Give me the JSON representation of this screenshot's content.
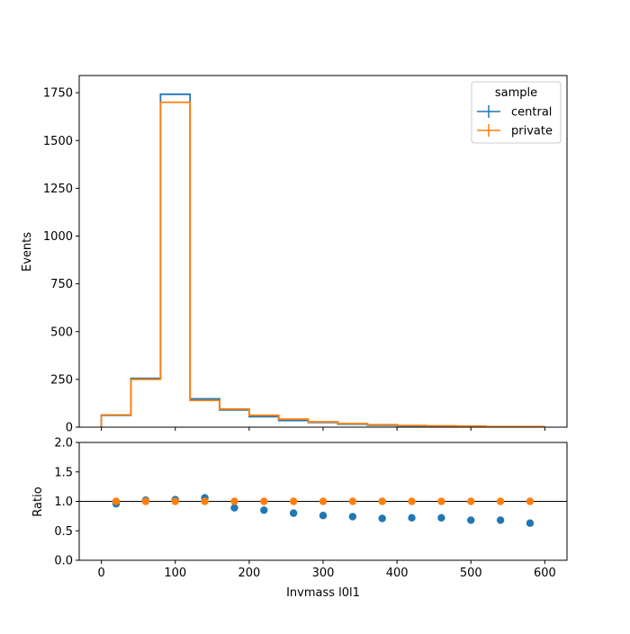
{
  "chart_data": [
    {
      "type": "histogram-step",
      "title": "",
      "xlabel": "",
      "ylabel": "Events",
      "xlim": [
        -30,
        630
      ],
      "ylim": [
        0,
        1840
      ],
      "yticks": [
        0,
        250,
        500,
        750,
        1000,
        1250,
        1500,
        1750
      ],
      "xticks": [
        0,
        100,
        200,
        300,
        400,
        500,
        600
      ],
      "bin_edges": [
        0,
        40,
        80,
        120,
        160,
        200,
        240,
        280,
        320,
        360,
        400,
        440,
        480,
        520,
        560,
        600
      ],
      "legend": {
        "title": "sample",
        "placement": "upper-right"
      },
      "series": [
        {
          "name": "central",
          "color": "#1f77b4",
          "values": [
            62,
            255,
            1742,
            148,
            90,
            55,
            35,
            25,
            16,
            10,
            7,
            5,
            3,
            2,
            2
          ]
        },
        {
          "name": "private",
          "color": "#ff7f0e",
          "values": [
            64,
            250,
            1700,
            140,
            95,
            62,
            42,
            28,
            19,
            13,
            9,
            7,
            5,
            3,
            3
          ]
        }
      ]
    },
    {
      "type": "scatter",
      "title": "",
      "xlabel": "Invmass l0l1",
      "ylabel": "Ratio",
      "xlim": [
        -30,
        630
      ],
      "ylim": [
        0,
        2
      ],
      "yticks": [
        "0.0",
        "0.5",
        "1.0",
        "1.5",
        "2.0"
      ],
      "xticks": [
        0,
        100,
        200,
        300,
        400,
        500,
        600
      ],
      "reference_line": 1.0,
      "x": [
        20,
        60,
        100,
        140,
        180,
        220,
        260,
        300,
        340,
        380,
        420,
        460,
        500,
        540,
        580
      ],
      "series": [
        {
          "name": "central",
          "color": "#1f77b4",
          "values": [
            0.96,
            1.02,
            1.03,
            1.06,
            0.89,
            0.85,
            0.8,
            0.76,
            0.74,
            0.71,
            0.72,
            0.72,
            0.68,
            0.68,
            0.63
          ]
        },
        {
          "name": "private",
          "color": "#ff7f0e",
          "values": [
            1.0,
            1.0,
            1.0,
            1.0,
            1.0,
            1.0,
            1.0,
            1.0,
            1.0,
            1.0,
            1.0,
            1.0,
            1.0,
            1.0,
            1.0
          ]
        }
      ]
    }
  ]
}
